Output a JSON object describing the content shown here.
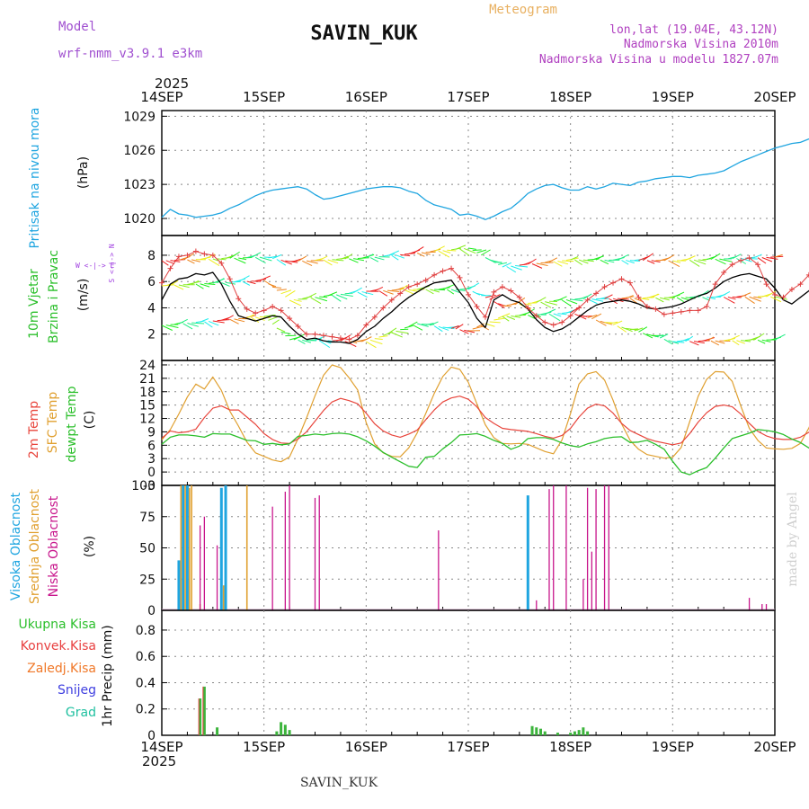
{
  "header": {
    "model_label": "Model",
    "model_name": "wrf-nmm_v3.9.1 e3km",
    "station": "SAVIN_KUK",
    "chart_type": "Meteogram",
    "coords": "lon,lat (19.04E, 43.12N)",
    "elevation": "Nadmorska Visina 2010m",
    "model_elevation": "Nadmorska Visina u modelu 1827.07m",
    "year": "2025",
    "footer_station": "SAVIN_KUK",
    "credit": "made by Angel"
  },
  "colors": {
    "pressure": "#1fa5e0",
    "temp2m": "#e8453c",
    "sfc": "#e0a030",
    "dewpt": "#2bbf2b",
    "wind_speed": "#000000",
    "gust": "#e04040",
    "cloud_high": "#1fa5e0",
    "cloud_mid": "#e0a030",
    "cloud_low": "#c8168c",
    "precip_total": "#3cb43c",
    "precip_conv": "#e84040",
    "precip_frozen": "#f07828",
    "precip_snow": "#4040e0",
    "precip_hail": "#20c0a0",
    "grid": "#888888"
  },
  "chart_data": [
    {
      "type": "line",
      "id": "pressure",
      "title": "Pritisak na nivou mora",
      "ylabel": "(hPa)",
      "ylim": [
        1018.5,
        1029.5
      ],
      "yticks": [
        1020,
        1023,
        1026,
        1029
      ],
      "xlim": [
        0,
        144
      ],
      "x_step": 2,
      "values": [
        1020.1,
        1020.8,
        1020.4,
        1020.3,
        1020.1,
        1020.2,
        1020.3,
        1020.5,
        1020.9,
        1021.2,
        1021.6,
        1022.0,
        1022.3,
        1022.5,
        1022.6,
        1022.7,
        1022.8,
        1022.6,
        1022.1,
        1021.7,
        1021.8,
        1022.0,
        1022.2,
        1022.4,
        1022.6,
        1022.7,
        1022.8,
        1022.8,
        1022.7,
        1022.4,
        1022.2,
        1021.6,
        1021.2,
        1021.0,
        1020.8,
        1020.3,
        1020.4,
        1020.2,
        1019.9,
        1020.2,
        1020.6,
        1020.9,
        1021.5,
        1022.2,
        1022.6,
        1022.9,
        1023.0,
        1022.7,
        1022.5,
        1022.5,
        1022.8,
        1022.6,
        1022.8,
        1023.1,
        1023.0,
        1022.9,
        1023.2,
        1023.3,
        1023.5,
        1023.6,
        1023.7,
        1023.7,
        1023.6,
        1023.8,
        1023.9,
        1024.0,
        1024.2,
        1024.6,
        1025.0,
        1025.3,
        1025.6,
        1025.9,
        1026.2,
        1026.4,
        1026.6,
        1026.7,
        1027.0,
        1027.1,
        1027.3,
        1027.6,
        1028.2,
        1028.6,
        1028.9,
        1029.1,
        1028.9,
        1028.9
      ]
    },
    {
      "type": "line",
      "id": "wind",
      "title_lines": [
        "10m Vjetar",
        "Brzina i Pravac"
      ],
      "ylabel": "(m/s)",
      "compass": "W <-|-> E   S <-|-> N",
      "ylim": [
        0,
        9.5
      ],
      "yticks": [
        2,
        4,
        6,
        8
      ],
      "xlim": [
        0,
        144
      ],
      "x_step": 2,
      "series": [
        {
          "name": "10m wind speed",
          "values": [
            4.6,
            5.8,
            6.2,
            6.3,
            6.6,
            6.5,
            6.7,
            5.8,
            4.5,
            3.4,
            3.2,
            3.0,
            3.2,
            3.4,
            3.3,
            2.6,
            2.0,
            1.6,
            1.7,
            1.5,
            1.4,
            1.4,
            1.3,
            1.6,
            2.2,
            2.6,
            3.2,
            3.7,
            4.3,
            4.8,
            5.2,
            5.6,
            5.9,
            6.0,
            6.1,
            5.2,
            4.4,
            3.2,
            2.5,
            4.6,
            5.0,
            4.6,
            4.4,
            3.9,
            3.1,
            2.5,
            2.2,
            2.4,
            2.8,
            3.3,
            3.8,
            4.2,
            4.4,
            4.5,
            4.6,
            4.5,
            4.3,
            4.0,
            3.9,
            4.0,
            4.1,
            4.3,
            4.6,
            4.9,
            5.1,
            5.5,
            6.0,
            6.3,
            6.5,
            6.6,
            6.4,
            6.2,
            5.5,
            4.6,
            4.3,
            4.8,
            5.3,
            5.7,
            5.9,
            6.0,
            6.3,
            6.2,
            6.4,
            6.1,
            5.8,
            5.3
          ]
        },
        {
          "name": "gust",
          "values": [
            5.9,
            7.0,
            7.9,
            8.0,
            8.3,
            8.1,
            8.0,
            7.4,
            6.2,
            4.7,
            3.9,
            3.6,
            3.8,
            4.1,
            3.8,
            3.2,
            2.6,
            2.0,
            2.0,
            1.9,
            1.8,
            1.7,
            1.6,
            1.9,
            2.7,
            3.3,
            4.0,
            4.6,
            5.1,
            5.6,
            5.8,
            6.1,
            6.5,
            6.8,
            7.0,
            6.3,
            5.0,
            4.1,
            3.3,
            5.2,
            5.6,
            5.3,
            4.8,
            4.0,
            3.4,
            2.9,
            2.7,
            2.9,
            3.4,
            4.0,
            4.6,
            5.1,
            5.6,
            5.9,
            6.2,
            5.9,
            4.8,
            4.1,
            3.9,
            3.5,
            3.6,
            3.7,
            3.8,
            3.8,
            4.1,
            5.8,
            6.7,
            7.3,
            7.6,
            7.8,
            7.3,
            5.8,
            5.0,
            4.8,
            5.4,
            5.8,
            6.5,
            6.7,
            7.4,
            8.2,
            9.0,
            7.8,
            7.4,
            6.4,
            5.6,
            5.6
          ]
        }
      ]
    },
    {
      "type": "line",
      "id": "temperature",
      "title_lines": [
        "2m Temp",
        "SFC Temp",
        "dewpt Temp"
      ],
      "ylabel": "(C)",
      "ylim": [
        -3,
        25
      ],
      "yticks": [
        -3,
        0,
        3,
        6,
        9,
        12,
        15,
        18,
        21,
        24
      ],
      "xlim": [
        0,
        144
      ],
      "x_step": 2,
      "series": [
        {
          "name": "2m Temp",
          "values": [
            7.6,
            9.2,
            8.8,
            9.0,
            9.6,
            12.2,
            14.3,
            14.8,
            13.9,
            13.9,
            12.3,
            10.7,
            8.6,
            7.3,
            6.5,
            6.4,
            7.4,
            9.0,
            11.4,
            13.8,
            15.7,
            16.5,
            16.0,
            15.3,
            13.2,
            10.8,
            9.2,
            8.3,
            7.8,
            8.5,
            9.4,
            11.7,
            13.9,
            15.7,
            16.6,
            17.0,
            16.3,
            14.6,
            12.2,
            10.9,
            9.8,
            9.5,
            9.3,
            9.1,
            8.6,
            8.0,
            7.6,
            8.2,
            9.8,
            12.3,
            14.3,
            15.2,
            14.8,
            13.2,
            10.9,
            9.3,
            8.4,
            7.5,
            6.9,
            6.5,
            6.1,
            6.5,
            8.6,
            11.2,
            13.3,
            14.7,
            15.0,
            14.6,
            13.0,
            10.9,
            9.1,
            8.1,
            7.5,
            7.3,
            7.3,
            7.8,
            8.9,
            10.7,
            13.0,
            14.8,
            15.9,
            16.4,
            15.8,
            13.5,
            11.2,
            9.3,
            9.2,
            9.3,
            9.1,
            8.5,
            7.4,
            6.7,
            6.3,
            6.1,
            6.0
          ]
        },
        {
          "name": "SFC Temp",
          "values": [
            7.2,
            9.5,
            13.0,
            16.8,
            19.7,
            18.6,
            21.3,
            18.3,
            13.6,
            10.3,
            6.7,
            4.3,
            3.5,
            2.7,
            2.3,
            3.4,
            7.5,
            12.1,
            17.1,
            21.7,
            24.0,
            23.4,
            21.1,
            18.4,
            11.1,
            6.3,
            4.3,
            3.5,
            3.4,
            5.4,
            8.8,
            13.1,
            17.6,
            21.4,
            23.5,
            23.0,
            20.1,
            15.3,
            10.6,
            7.7,
            6.4,
            6.3,
            6.4,
            6.2,
            5.4,
            4.6,
            4.1,
            7.2,
            13.1,
            19.7,
            22.0,
            22.5,
            20.6,
            16.1,
            10.8,
            7.1,
            5.1,
            3.9,
            3.5,
            3.1,
            3.3,
            5.5,
            11.3,
            17.0,
            20.8,
            22.5,
            22.4,
            20.3,
            14.8,
            9.8,
            7.1,
            5.4,
            5.2,
            5.1,
            5.3,
            6.4,
            9.9,
            14.4,
            19.3,
            22.2,
            22.7,
            20.7,
            16.0,
            11.0,
            8.8,
            8.0,
            8.5,
            8.3,
            7.8,
            7.0,
            6.0,
            5.2,
            4.3,
            6.3,
            8.7
          ]
        },
        {
          "name": "dewpt Temp",
          "values": [
            6.2,
            7.8,
            8.3,
            8.3,
            8.1,
            7.8,
            8.6,
            8.5,
            8.5,
            7.8,
            7.1,
            7.0,
            6.2,
            6.4,
            6.1,
            6.3,
            8.0,
            8.2,
            8.5,
            8.3,
            8.6,
            8.7,
            8.5,
            7.9,
            7.0,
            5.8,
            4.4,
            3.3,
            2.3,
            1.3,
            1.0,
            3.3,
            3.5,
            5.2,
            6.6,
            8.3,
            8.4,
            8.6,
            8.0,
            7.1,
            6.4,
            5.1,
            5.8,
            7.5,
            7.7,
            7.7,
            7.3,
            6.5,
            5.9,
            5.6,
            6.3,
            6.8,
            7.5,
            7.8,
            7.9,
            6.6,
            6.7,
            7.1,
            6.2,
            5.1,
            2.4,
            0.0,
            -0.6,
            0.3,
            1.0,
            3.1,
            5.4,
            7.5,
            8.1,
            8.7,
            9.5,
            9.3,
            9.0,
            8.4,
            7.4,
            6.6,
            5.4,
            4.2,
            3.6,
            3.2,
            2.8,
            3.4,
            4.9,
            6.6,
            7.9,
            9.3,
            9.7,
            9.7,
            9.4,
            8.7,
            7.9,
            7.0,
            6.2,
            5.3,
            4.7
          ]
        }
      ]
    },
    {
      "type": "bar",
      "id": "clouds",
      "title_lines": [
        "Visoka Oblacnost",
        "Srednja Oblacnost",
        "Niska Oblacnost"
      ],
      "ylabel": "(%)",
      "ylim": [
        0,
        100
      ],
      "yticks": [
        0,
        25,
        50,
        75,
        100
      ],
      "xlim": [
        0,
        144
      ],
      "series": [
        {
          "name": "Visoka Oblacnost",
          "bars": [
            [
              4,
              40
            ],
            [
              5,
              100
            ],
            [
              6,
              100
            ],
            [
              14,
              98
            ],
            [
              15,
              100
            ],
            [
              86,
              92
            ]
          ]
        },
        {
          "name": "Srednja Oblacnost",
          "bars": [
            [
              4.5,
              100
            ],
            [
              5.5,
              100
            ],
            [
              6.5,
              98
            ],
            [
              7,
              100
            ],
            [
              9,
              5
            ],
            [
              14.5,
              20
            ],
            [
              20,
              100
            ]
          ]
        },
        {
          "name": "Niska Oblacnost",
          "bars": [
            [
              9,
              68
            ],
            [
              10,
              75
            ],
            [
              13,
              52
            ],
            [
              26,
              83
            ],
            [
              29,
              95
            ],
            [
              30,
              100
            ],
            [
              36,
              90
            ],
            [
              37,
              92
            ],
            [
              65,
              64
            ],
            [
              88,
              8
            ],
            [
              91,
              97
            ],
            [
              92,
              100
            ],
            [
              95,
              100
            ],
            [
              99,
              25
            ],
            [
              100,
              98
            ],
            [
              101,
              47
            ],
            [
              102,
              97
            ],
            [
              104,
              100
            ],
            [
              105,
              100
            ],
            [
              138,
              10
            ],
            [
              141,
              5
            ],
            [
              142,
              5
            ]
          ]
        }
      ]
    },
    {
      "type": "bar",
      "id": "precip",
      "ylabel": "1hr Precip (mm)",
      "legend": [
        "Ukupna Kisa",
        "Konvek.Kisa",
        "Zaledj.Kisa",
        "Snijeg",
        "Grad"
      ],
      "ylim": [
        0,
        0.95
      ],
      "yticks": [
        0,
        0.2,
        0.4,
        0.6,
        0.8
      ],
      "xlim": [
        0,
        144
      ],
      "series": [
        {
          "name": "Ukupna Kisa",
          "bars": [
            [
              9,
              0.28
            ],
            [
              10,
              0.37
            ],
            [
              13,
              0.06
            ],
            [
              27,
              0.03
            ],
            [
              28,
              0.1
            ],
            [
              29,
              0.08
            ],
            [
              30,
              0.04
            ],
            [
              87,
              0.07
            ],
            [
              88,
              0.06
            ],
            [
              89,
              0.05
            ],
            [
              90,
              0.03
            ],
            [
              93,
              0.02
            ],
            [
              96,
              0.02
            ],
            [
              97,
              0.03
            ],
            [
              98,
              0.04
            ],
            [
              99,
              0.06
            ],
            [
              100,
              0.03
            ]
          ]
        },
        {
          "name": "Konvek.Kisa",
          "bars": [
            [
              9,
              0.28
            ],
            [
              10,
              0.37
            ]
          ]
        }
      ]
    }
  ],
  "x_axis": {
    "labels": [
      "14SEP",
      "15SEP",
      "16SEP",
      "17SEP",
      "18SEP",
      "19SEP",
      "20SEP"
    ],
    "label_hours": [
      0,
      24,
      48,
      72,
      96,
      120,
      144
    ]
  }
}
